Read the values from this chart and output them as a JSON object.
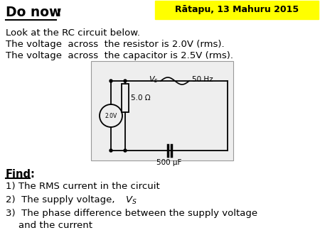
{
  "title_text": "Do now",
  "title_colon": ":",
  "banner_text": "Rātapu, 13 Mahuru 2015",
  "banner_color": "#FFFF00",
  "body_lines": [
    "Look at the RC circuit below.",
    "The voltage  across  the resistor is 2.0V (rms).",
    "The voltage  across  the capacitor is 2.5V (rms)."
  ],
  "find_label": "Find",
  "bg_color": "#FFFFFF",
  "resistor_label": "5.0 Ω",
  "capacitor_label": "500 μF",
  "source_label": "2.0V",
  "freq_label": "50 Hz",
  "circuit_bg": "#EEEEEE",
  "circuit_border": "#999999"
}
